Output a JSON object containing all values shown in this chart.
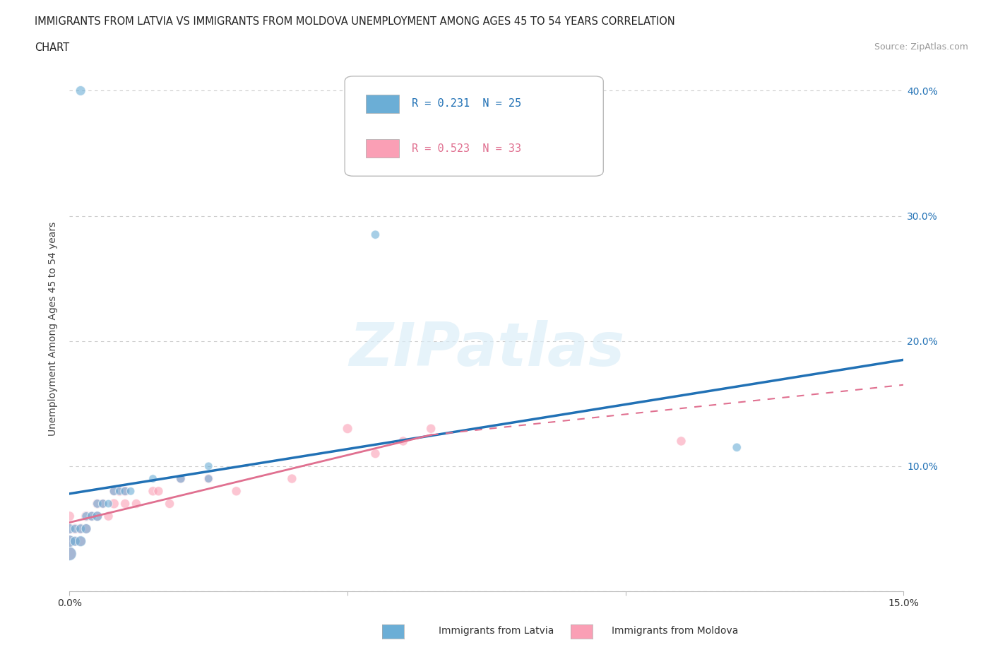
{
  "title_line1": "IMMIGRANTS FROM LATVIA VS IMMIGRANTS FROM MOLDOVA UNEMPLOYMENT AMONG AGES 45 TO 54 YEARS CORRELATION",
  "title_line2": "CHART",
  "source": "Source: ZipAtlas.com",
  "ylabel": "Unemployment Among Ages 45 to 54 years",
  "xlim": [
    0.0,
    0.15
  ],
  "ylim": [
    0.0,
    0.42
  ],
  "xticks": [
    0.0,
    0.05,
    0.1,
    0.15
  ],
  "xticklabels": [
    "0.0%",
    "",
    "",
    "15.0%"
  ],
  "yticks": [
    0.0,
    0.1,
    0.2,
    0.3,
    0.4
  ],
  "yticklabels_right": [
    "",
    "10.0%",
    "20.0%",
    "30.0%",
    "40.0%"
  ],
  "R_latvia": 0.231,
  "N_latvia": 25,
  "R_moldova": 0.523,
  "N_moldova": 33,
  "color_latvia": "#6BAED6",
  "color_moldova": "#FA9FB5",
  "color_line_latvia": "#2171B5",
  "color_line_moldova": "#E07090",
  "latvia_line_x0": 0.0,
  "latvia_line_y0": 0.078,
  "latvia_line_x1": 0.15,
  "latvia_line_y1": 0.185,
  "moldova_line_x0": 0.0,
  "moldova_line_y0": 0.055,
  "moldova_line_x_solid_end": 0.065,
  "moldova_line_y_solid_end": 0.125,
  "moldova_line_x1": 0.15,
  "moldova_line_y1": 0.165,
  "latvia_x": [
    0.0,
    0.0,
    0.0,
    0.001,
    0.001,
    0.002,
    0.002,
    0.003,
    0.003,
    0.004,
    0.005,
    0.005,
    0.006,
    0.007,
    0.008,
    0.009,
    0.01,
    0.011,
    0.015,
    0.02,
    0.025,
    0.025,
    0.055,
    0.12,
    0.002
  ],
  "latvia_y": [
    0.03,
    0.04,
    0.05,
    0.04,
    0.05,
    0.04,
    0.05,
    0.05,
    0.06,
    0.06,
    0.06,
    0.07,
    0.07,
    0.07,
    0.08,
    0.08,
    0.08,
    0.08,
    0.09,
    0.09,
    0.09,
    0.1,
    0.285,
    0.115,
    0.4
  ],
  "latvia_size": [
    200,
    150,
    100,
    100,
    80,
    120,
    90,
    100,
    80,
    90,
    100,
    80,
    80,
    70,
    80,
    70,
    80,
    70,
    70,
    80,
    70,
    70,
    80,
    80,
    100
  ],
  "moldova_x": [
    0.0,
    0.0,
    0.0,
    0.0,
    0.001,
    0.001,
    0.002,
    0.002,
    0.003,
    0.003,
    0.004,
    0.005,
    0.005,
    0.006,
    0.007,
    0.008,
    0.008,
    0.009,
    0.01,
    0.01,
    0.012,
    0.015,
    0.016,
    0.018,
    0.02,
    0.025,
    0.03,
    0.04,
    0.05,
    0.055,
    0.06,
    0.065,
    0.11
  ],
  "moldova_y": [
    0.03,
    0.04,
    0.05,
    0.06,
    0.04,
    0.05,
    0.04,
    0.05,
    0.05,
    0.06,
    0.06,
    0.06,
    0.07,
    0.07,
    0.06,
    0.07,
    0.08,
    0.08,
    0.07,
    0.08,
    0.07,
    0.08,
    0.08,
    0.07,
    0.09,
    0.09,
    0.08,
    0.09,
    0.13,
    0.11,
    0.12,
    0.13,
    0.12
  ],
  "moldova_size": [
    180,
    150,
    120,
    100,
    100,
    110,
    100,
    110,
    100,
    110,
    100,
    100,
    100,
    90,
    90,
    100,
    90,
    100,
    90,
    100,
    90,
    90,
    90,
    90,
    90,
    90,
    90,
    90,
    100,
    90,
    90,
    90,
    90
  ],
  "watermark": "ZIPatlas",
  "background_color": "#ffffff",
  "grid_color": "#cccccc",
  "legend_label_latvia": "R = 0.231  N = 25",
  "legend_label_moldova": "R = 0.523  N = 33",
  "bottom_legend_latvia": "Immigrants from Latvia",
  "bottom_legend_moldova": "Immigrants from Moldova"
}
